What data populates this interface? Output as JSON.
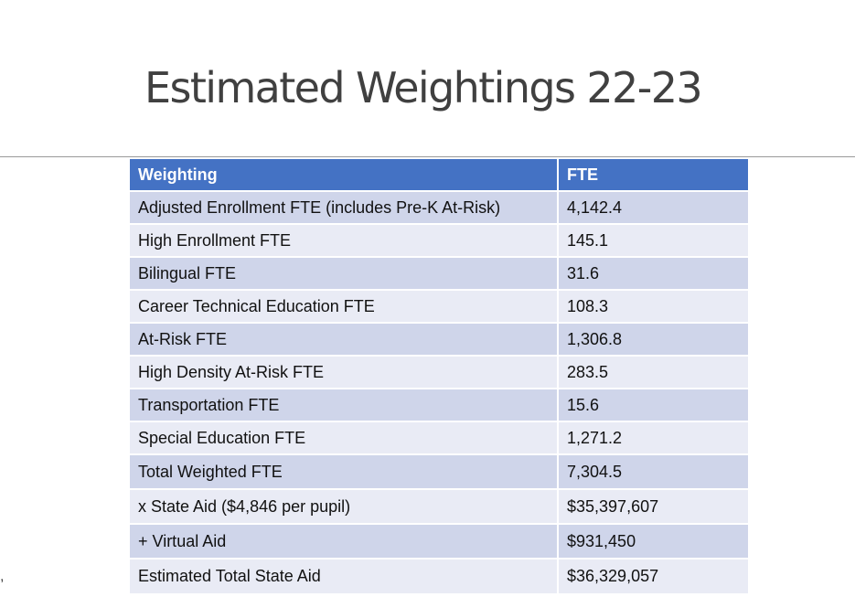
{
  "slide": {
    "title": "Estimated Weightings 22-23",
    "stray_mark": ","
  },
  "table": {
    "headers": [
      "Weighting",
      "FTE"
    ],
    "rows": [
      [
        "Adjusted Enrollment FTE (includes Pre-K At-Risk)",
        "4,142.4"
      ],
      [
        "High Enrollment FTE",
        "145.1"
      ],
      [
        "Bilingual FTE",
        "31.6"
      ],
      [
        "Career Technical Education FTE",
        "108.3"
      ],
      [
        "At-Risk FTE",
        "1,306.8"
      ],
      [
        "High Density At-Risk FTE",
        "283.5"
      ],
      [
        "Transportation FTE",
        "15.6"
      ],
      [
        "Special Education FTE",
        "1,271.2"
      ],
      [
        "Total Weighted FTE",
        "7,304.5"
      ],
      [
        "x State Aid ($4,846 per pupil)",
        "$35,397,607"
      ],
      [
        "+ Virtual Aid",
        "$931,450"
      ],
      [
        "Estimated Total State Aid",
        "$36,329,057"
      ]
    ]
  },
  "colors": {
    "header_bg": "#4472c4",
    "row_dark": "#cfd5ea",
    "row_light": "#e9ebf5",
    "title_text": "#404040"
  }
}
